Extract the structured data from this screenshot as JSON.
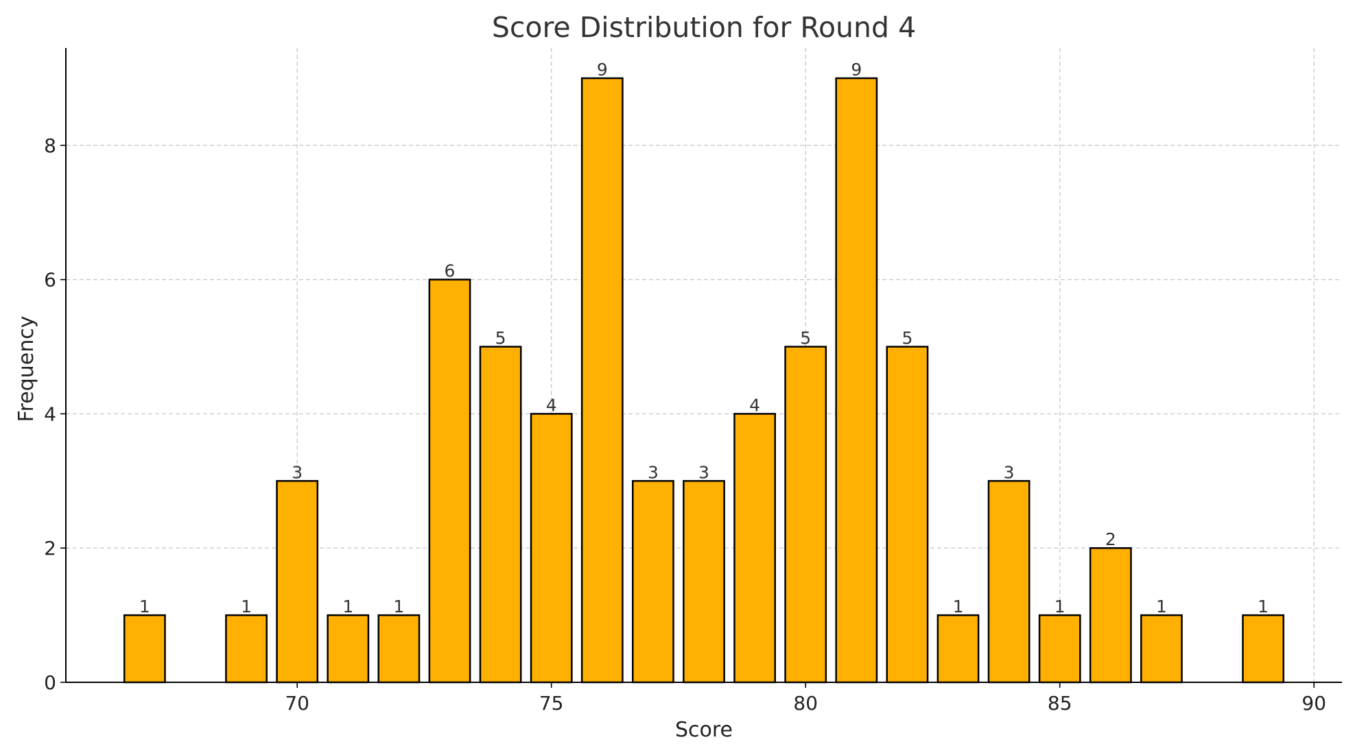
{
  "chart_data": {
    "type": "bar",
    "title": "Score Distribution for Round 4",
    "xlabel": "Score",
    "ylabel": "Frequency",
    "x": [
      67,
      69,
      70,
      71,
      72,
      73,
      74,
      75,
      76,
      77,
      78,
      79,
      80,
      81,
      82,
      83,
      84,
      85,
      86,
      87,
      89
    ],
    "values": [
      1,
      1,
      3,
      1,
      1,
      6,
      5,
      4,
      9,
      3,
      3,
      4,
      5,
      9,
      5,
      1,
      3,
      1,
      2,
      1,
      1
    ],
    "xlim": [
      65.45,
      90.55
    ],
    "ylim": [
      0,
      9.45
    ],
    "xticks": [
      70,
      75,
      80,
      85,
      90
    ],
    "yticks": [
      0,
      2,
      4,
      6,
      8
    ],
    "bar_width": 0.8,
    "grid": true,
    "bar_color": "#FFB000",
    "edge_color": "#000000",
    "data_labels": true
  }
}
